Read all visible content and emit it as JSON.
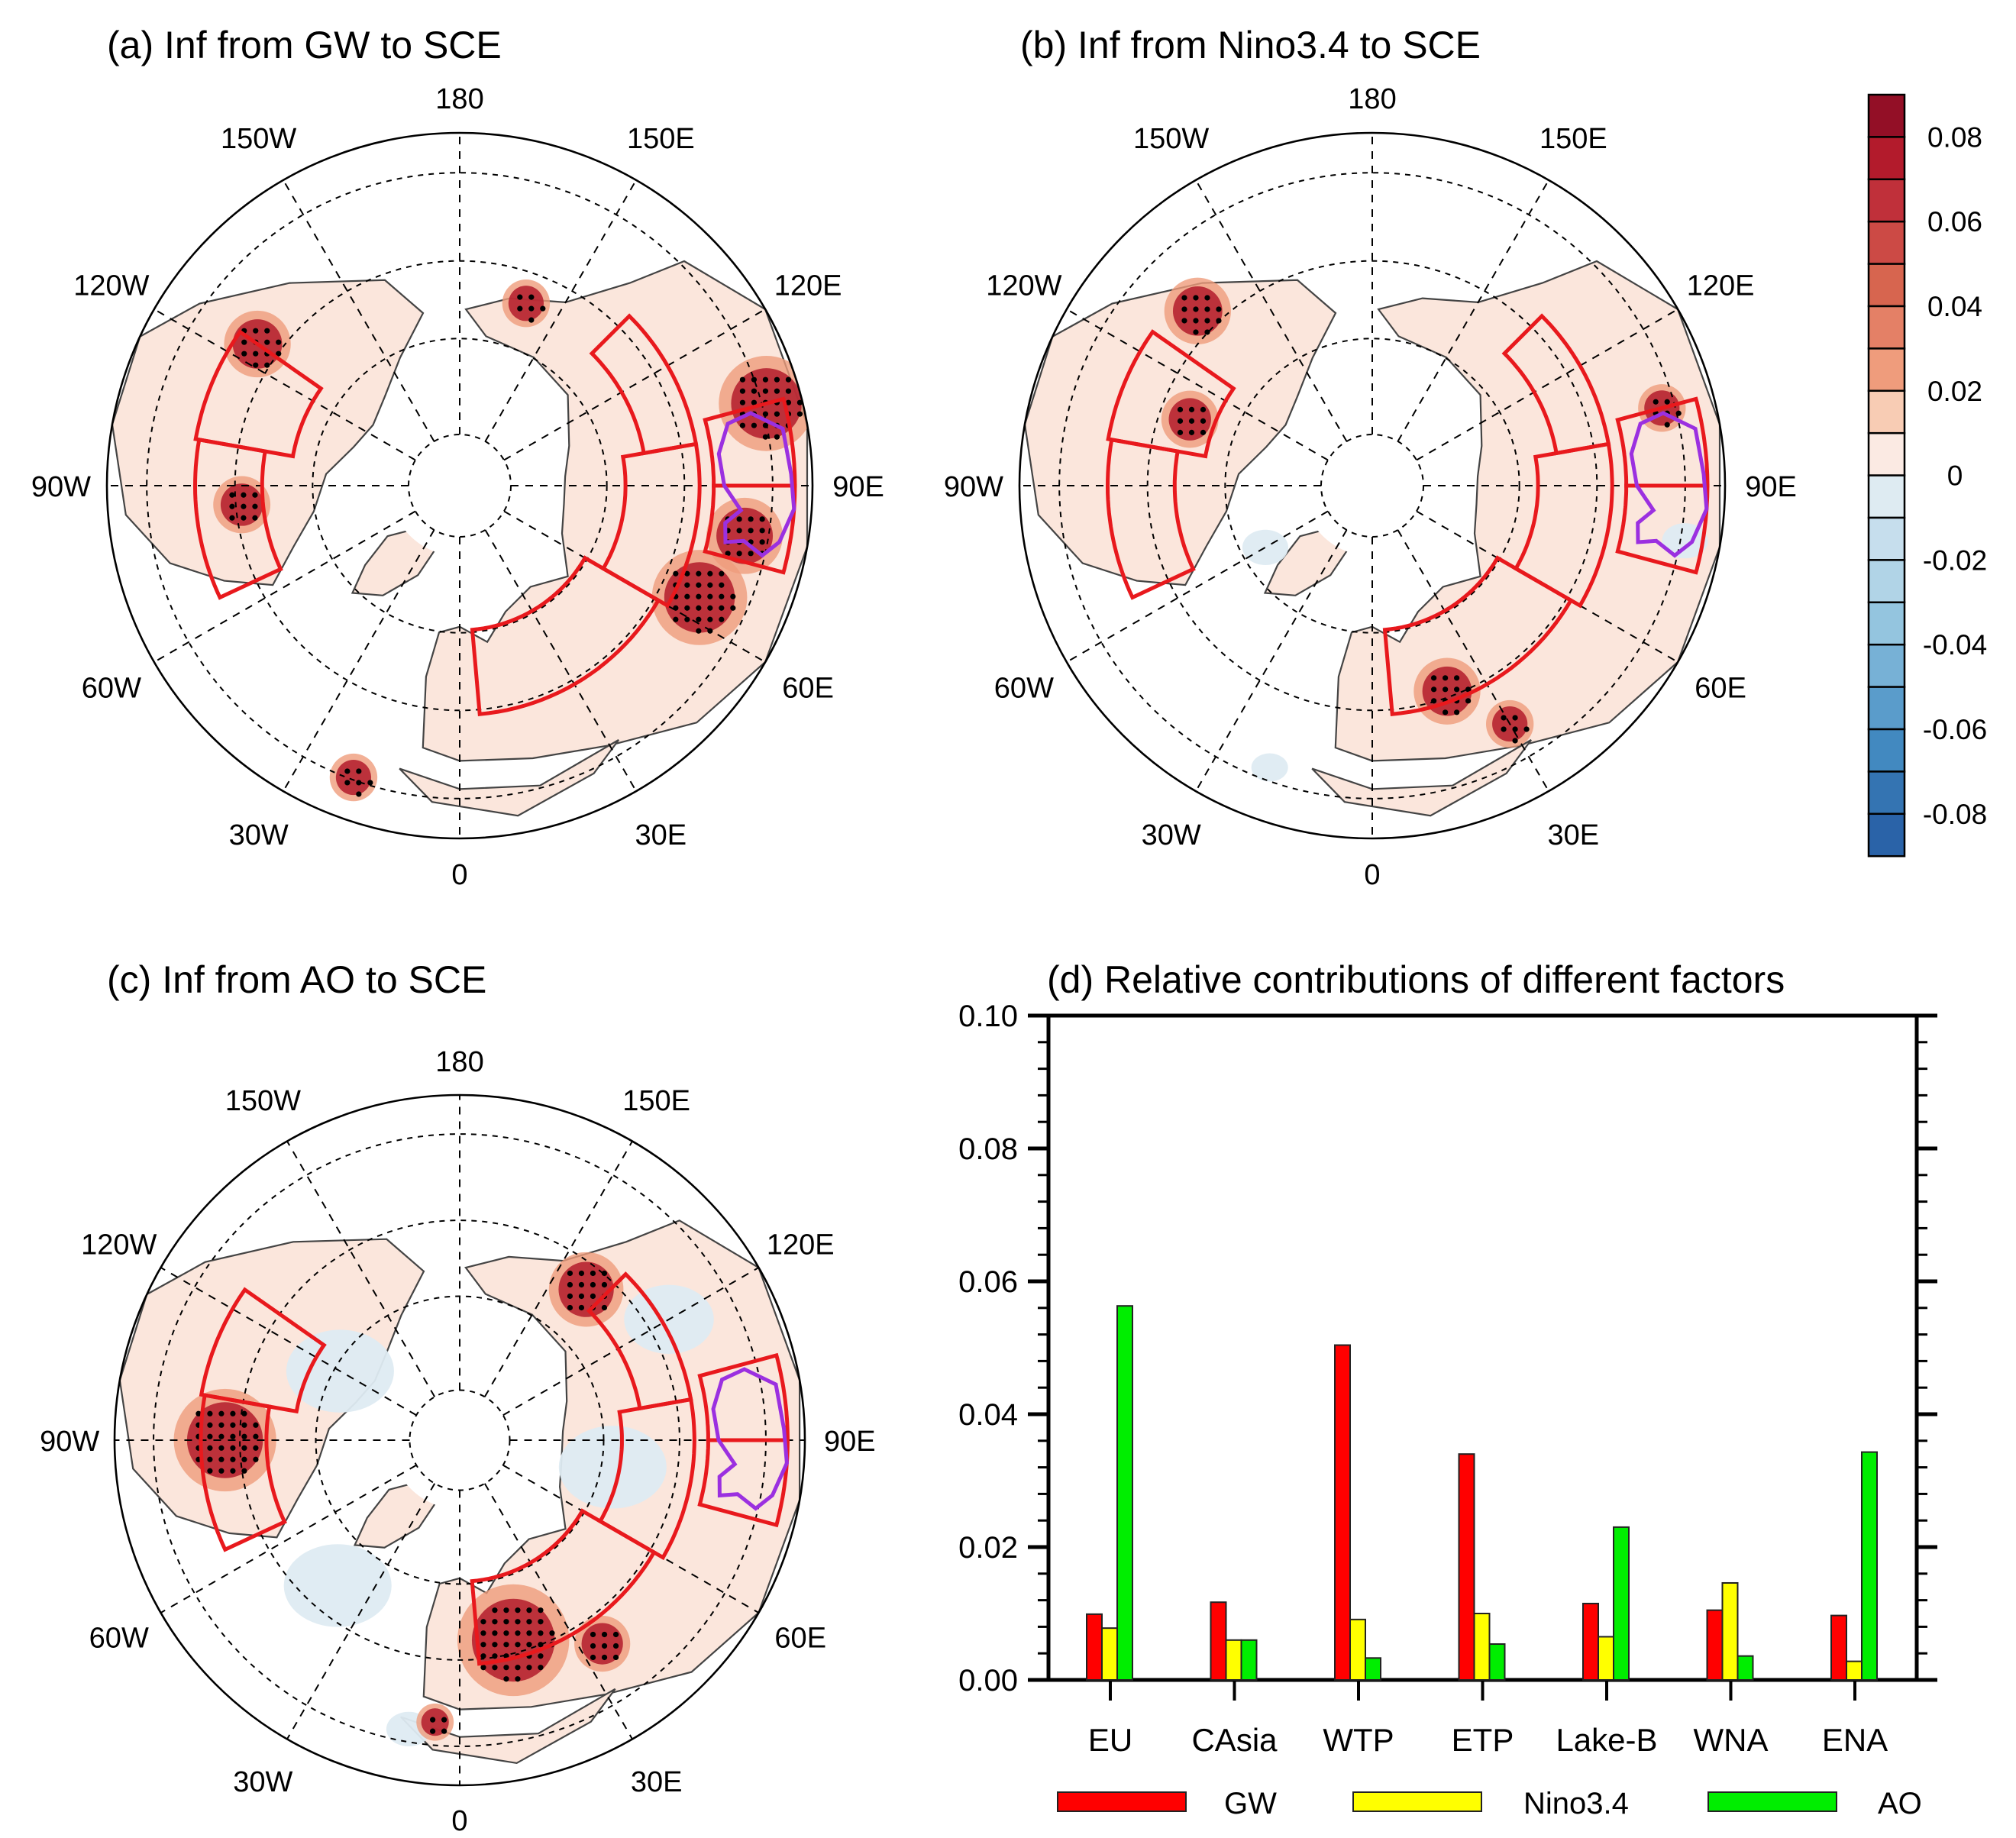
{
  "figure": {
    "panels": [
      {
        "id": "a",
        "title": "(a) Inf from GW to SCE",
        "lon_labels": [
          "180",
          "150E",
          "120E",
          "90E",
          "60E",
          "30E",
          "0",
          "30W",
          "60W",
          "90W",
          "120W",
          "150W"
        ]
      },
      {
        "id": "b",
        "title": "(b) Inf from Nino3.4 to SCE",
        "lon_labels": [
          "180",
          "150E",
          "120E",
          "90E",
          "60E",
          "30E",
          "0",
          "30W",
          "60W",
          "90W",
          "120W",
          "150W"
        ]
      },
      {
        "id": "c",
        "title": "(c) Inf from AO to SCE",
        "lon_labels": [
          "180",
          "150E",
          "120E",
          "90E",
          "60E",
          "30E",
          "0",
          "30W",
          "60W",
          "90W",
          "120W",
          "150W"
        ]
      }
    ],
    "colorbar": {
      "labels": [
        "0.08",
        "0.06",
        "0.04",
        "0.02",
        "0",
        "-0.02",
        "-0.04",
        "-0.06",
        "-0.08"
      ],
      "colors": [
        "#930f26",
        "#b31b2c",
        "#c0303a",
        "#cc4a45",
        "#d7654f",
        "#e48066",
        "#ef9c7c",
        "#f8ccb4",
        "#fbeae3",
        "#deebf2",
        "#c6deed",
        "#b1d4e7",
        "#94c5df",
        "#77b1d6",
        "#5a9ccb",
        "#4289c0",
        "#3474b2",
        "#2a63a8"
      ]
    },
    "region_outline_color": "#e8191d",
    "tp_outline_color": "#9b30e0",
    "land_shade_color": "#fbe6dc"
  },
  "chart_data": {
    "type": "bar",
    "title": "(d) Relative contributions of different factors",
    "xlabel": "",
    "ylabel": "",
    "categories": [
      "EU",
      "CAsia",
      "WTP",
      "ETP",
      "Lake-B",
      "WNA",
      "ENA"
    ],
    "series": [
      {
        "name": "GW",
        "color": "#ff0000",
        "values": [
          0.0099,
          0.0117,
          0.0504,
          0.034,
          0.0115,
          0.0105,
          0.0097
        ]
      },
      {
        "name": "Nino3.4",
        "color": "#ffff00",
        "values": [
          0.0078,
          0.006,
          0.0091,
          0.01,
          0.0065,
          0.0146,
          0.0028
        ]
      },
      {
        "name": "AO",
        "color": "#00ee00",
        "values": [
          0.0563,
          0.006,
          0.0033,
          0.0054,
          0.023,
          0.0036,
          0.0343
        ]
      }
    ],
    "ylim": [
      0,
      0.1
    ],
    "yticks": [
      "0.00",
      "0.02",
      "0.04",
      "0.06",
      "0.08",
      "0.10"
    ],
    "ytick_values": [
      0,
      0.02,
      0.04,
      0.06,
      0.08,
      0.1
    ],
    "minor_tick_step": 0.004,
    "grid": false,
    "legend_position": "bottom"
  }
}
